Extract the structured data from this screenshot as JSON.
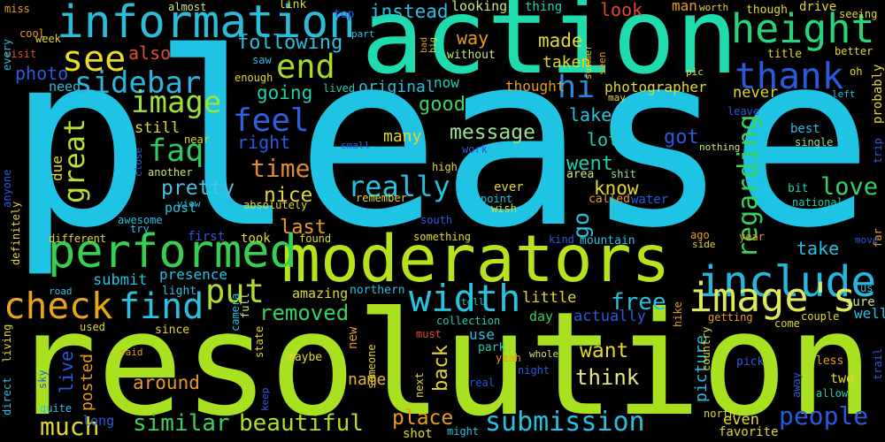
{
  "words": [
    {
      "text": "please",
      "color": "#1fc3e3"
    },
    {
      "text": "resolution",
      "color": "#a9e01f"
    },
    {
      "text": "action",
      "color": "#1fdcae"
    },
    {
      "text": "moderators",
      "color": "#b6e31b"
    },
    {
      "text": "information",
      "color": "#2bbcd8"
    },
    {
      "text": "height",
      "color": "#26d47a"
    },
    {
      "text": "thank",
      "color": "#2a5adb"
    },
    {
      "text": "end",
      "color": "#a4dc28"
    },
    {
      "text": "see",
      "color": "#e6dc22"
    },
    {
      "text": "sidebar",
      "color": "#29b5e0"
    },
    {
      "text": "performed",
      "color": "#35cf52"
    },
    {
      "text": "include",
      "color": "#25b8dc"
    },
    {
      "text": "image's",
      "color": "#dde85a"
    },
    {
      "text": "width",
      "color": "#2ac0e0"
    },
    {
      "text": "find",
      "color": "#28c0e0"
    },
    {
      "text": "check",
      "color": "#e8a51a"
    },
    {
      "text": "put",
      "color": "#b0de28"
    },
    {
      "text": "feel",
      "color": "#3060e0"
    },
    {
      "text": "faq",
      "color": "#2ecc60"
    },
    {
      "text": "hi",
      "color": "#2a8ae0"
    },
    {
      "text": "image",
      "color": "#9ee040"
    },
    {
      "text": "great",
      "color": "#b8e030"
    },
    {
      "text": "really",
      "color": "#28c0e0"
    },
    {
      "text": "love",
      "color": "#3ad060"
    },
    {
      "text": "time",
      "color": "#e08a30"
    },
    {
      "text": "pretty",
      "color": "#4bc0e0"
    },
    {
      "text": "nice",
      "color": "#e0d830"
    },
    {
      "text": "regarding",
      "color": "#3ad060"
    },
    {
      "text": "message",
      "color": "#9ae090"
    },
    {
      "text": "good",
      "color": "#40d060"
    },
    {
      "text": "got",
      "color": "#2a5ae0"
    },
    {
      "text": "went",
      "color": "#1fd0b0"
    },
    {
      "text": "know",
      "color": "#e0d830"
    },
    {
      "text": "lake",
      "color": "#28c0e0"
    },
    {
      "text": "lot",
      "color": "#1fd0b0"
    },
    {
      "text": "free",
      "color": "#28c0e0"
    },
    {
      "text": "removed",
      "color": "#3ad060"
    },
    {
      "text": "similar",
      "color": "#3ad060"
    },
    {
      "text": "beautiful",
      "color": "#b0e020"
    },
    {
      "text": "submission",
      "color": "#28c0e0"
    },
    {
      "text": "people",
      "color": "#2a5ae0"
    },
    {
      "text": "much",
      "color": "#e0d830"
    },
    {
      "text": "place",
      "color": "#e89a20"
    },
    {
      "text": "think",
      "color": "#e6e880"
    },
    {
      "text": "want",
      "color": "#e0d830"
    },
    {
      "text": "around",
      "color": "#e89a20"
    },
    {
      "text": "name",
      "color": "#e8b030"
    },
    {
      "text": "back",
      "color": "#e0d830"
    },
    {
      "text": "take",
      "color": "#28c0e0"
    },
    {
      "text": "go",
      "color": "#28c0e0"
    },
    {
      "text": "last",
      "color": "#e89a20"
    },
    {
      "text": "following",
      "color": "#28c0e0"
    },
    {
      "text": "going",
      "color": "#1fd0b0"
    },
    {
      "text": "instead",
      "color": "#28c0e0"
    },
    {
      "text": "made",
      "color": "#e0d830"
    },
    {
      "text": "taken",
      "color": "#e0d830"
    },
    {
      "text": "way",
      "color": "#e89a20"
    },
    {
      "text": "photographer",
      "color": "#e0d830"
    },
    {
      "text": "look",
      "color": "#e04a30"
    },
    {
      "text": "looking",
      "color": "#c8e880"
    },
    {
      "text": "thing",
      "color": "#1fd0b0"
    },
    {
      "text": "man",
      "color": "#e89a20"
    },
    {
      "text": "original",
      "color": "#28c0e0"
    },
    {
      "text": "thought",
      "color": "#e89a20"
    },
    {
      "text": "now",
      "color": "#1fd0b0"
    },
    {
      "text": "also",
      "color": "#e04a30"
    },
    {
      "text": "photo",
      "color": "#2a5ae0"
    },
    {
      "text": "need",
      "color": "#28c0e0"
    },
    {
      "text": "right",
      "color": "#2a5ae0"
    },
    {
      "text": "still",
      "color": "#e0d830"
    },
    {
      "text": "due",
      "color": "#e0d830"
    },
    {
      "text": "many",
      "color": "#e0d830"
    },
    {
      "text": "post",
      "color": "#28c0e0"
    },
    {
      "text": "absolutely",
      "color": "#e0d830"
    },
    {
      "text": "submit",
      "color": "#28c0e0"
    },
    {
      "text": "presence",
      "color": "#28c0e0"
    },
    {
      "text": "amazing",
      "color": "#e0d830"
    },
    {
      "text": "little",
      "color": "#e0d830"
    },
    {
      "text": "day",
      "color": "#3ad060"
    },
    {
      "text": "actually",
      "color": "#2a5ae0"
    },
    {
      "text": "live",
      "color": "#2a5ae0"
    },
    {
      "text": "posted",
      "color": "#e89a20"
    },
    {
      "text": "use",
      "color": "#28c0e0"
    },
    {
      "text": "collection",
      "color": "#1fd0b0"
    },
    {
      "text": "even",
      "color": "#e0d830"
    },
    {
      "text": "favorite",
      "color": "#e0d830"
    },
    {
      "text": "sure",
      "color": "#c8e880"
    },
    {
      "text": "well",
      "color": "#28c0e0"
    },
    {
      "text": "two",
      "color": "#e0d830"
    },
    {
      "text": "picture",
      "color": "#28c0e0"
    },
    {
      "text": "best",
      "color": "#28c0e0"
    },
    {
      "text": "single",
      "color": "#9ae090"
    },
    {
      "text": "bit",
      "color": "#1fd0b0"
    },
    {
      "text": "national",
      "color": "#1fd0b0"
    },
    {
      "text": "water",
      "color": "#2a5ae0"
    },
    {
      "text": "called",
      "color": "#e89a20"
    },
    {
      "text": "area",
      "color": "#c8e880"
    },
    {
      "text": "shit",
      "color": "#9ae090"
    },
    {
      "text": "mountain",
      "color": "#28c0e0"
    },
    {
      "text": "kind",
      "color": "#2a5ae0"
    },
    {
      "text": "year",
      "color": "#e89a20"
    },
    {
      "text": "ago",
      "color": "#e89a20"
    },
    {
      "text": "something",
      "color": "#e0d830"
    },
    {
      "text": "found",
      "color": "#e0d830"
    },
    {
      "text": "took",
      "color": "#e0d830"
    },
    {
      "text": "first",
      "color": "#2a5ae0"
    },
    {
      "text": "different",
      "color": "#e0d830"
    },
    {
      "text": "remember",
      "color": "#e0d830"
    },
    {
      "text": "ever",
      "color": "#e0d830"
    },
    {
      "text": "point",
      "color": "#28c0e0"
    },
    {
      "text": "wish",
      "color": "#e0d830"
    },
    {
      "text": "south",
      "color": "#2a5ae0"
    },
    {
      "text": "northern",
      "color": "#28c0e0"
    },
    {
      "text": "park",
      "color": "#1fd0b0"
    },
    {
      "text": "must",
      "color": "#e04a30"
    },
    {
      "text": "yeah",
      "color": "#e89a20"
    },
    {
      "text": "whole",
      "color": "#c8e880"
    },
    {
      "text": "night",
      "color": "#2a5ae0"
    },
    {
      "text": "real",
      "color": "#2a5ae0"
    },
    {
      "text": "might",
      "color": "#28c0e0"
    },
    {
      "text": "shot",
      "color": "#e0d830"
    },
    {
      "text": "maybe",
      "color": "#e0d830"
    },
    {
      "text": "light",
      "color": "#28c0e0"
    },
    {
      "text": "used",
      "color": "#e0d830"
    },
    {
      "text": "since",
      "color": "#e0d830"
    },
    {
      "text": "long",
      "color": "#2a5ae0"
    },
    {
      "text": "quite",
      "color": "#28c0e0"
    },
    {
      "text": "said",
      "color": "#e89a20"
    },
    {
      "text": "sky",
      "color": "#2a5ae0"
    },
    {
      "text": "awesome",
      "color": "#28c0e0"
    },
    {
      "text": "try",
      "color": "#28c0e0"
    },
    {
      "text": "view",
      "color": "#28c0e0"
    },
    {
      "text": "another",
      "color": "#c8e880"
    },
    {
      "text": "near",
      "color": "#e0d830"
    },
    {
      "text": "summer",
      "color": "#e0d830"
    },
    {
      "text": "seen",
      "color": "#e89a20"
    },
    {
      "text": "drive",
      "color": "#e0d830"
    },
    {
      "text": "seeing",
      "color": "#e0d830"
    },
    {
      "text": "though",
      "color": "#e0d830"
    },
    {
      "text": "worth",
      "color": "#e0d830"
    },
    {
      "text": "title",
      "color": "#e0d830"
    },
    {
      "text": "better",
      "color": "#e0d830"
    },
    {
      "text": "pic",
      "color": "#e0d830"
    },
    {
      "text": "oh",
      "color": "#e0d830"
    },
    {
      "text": "left",
      "color": "#28c0e0"
    },
    {
      "text": "leave",
      "color": "#2a5ae0"
    },
    {
      "text": "nothing",
      "color": "#c8e880"
    },
    {
      "text": "never",
      "color": "#e0d830"
    },
    {
      "text": "may",
      "color": "#e0d830"
    },
    {
      "text": "miss",
      "color": "#e89a20"
    },
    {
      "text": "almost",
      "color": "#c8e880"
    },
    {
      "text": "link",
      "color": "#e0d830"
    },
    {
      "text": "top",
      "color": "#2a5ae0"
    },
    {
      "text": "part",
      "color": "#28c0e0"
    },
    {
      "text": "without",
      "color": "#c8e880"
    },
    {
      "text": "saw",
      "color": "#28c0e0"
    },
    {
      "text": "enough",
      "color": "#e0d830"
    },
    {
      "text": "lived",
      "color": "#1fd0b0"
    },
    {
      "text": "visit",
      "color": "#e04a30"
    },
    {
      "text": "week",
      "color": "#e0d830"
    },
    {
      "text": "cool",
      "color": "#e89a20"
    },
    {
      "text": "every",
      "color": "#28c0e0"
    },
    {
      "text": "high",
      "color": "#e0d830"
    },
    {
      "text": "work",
      "color": "#2a5ae0"
    },
    {
      "text": "small",
      "color": "#2a5ae0"
    },
    {
      "text": "anyone",
      "color": "#2a5ae0"
    },
    {
      "text": "definitely",
      "color": "#e0d830"
    },
    {
      "text": "direct",
      "color": "#28c0e0"
    },
    {
      "text": "living",
      "color": "#e0d830"
    },
    {
      "text": "state",
      "color": "#e0d830"
    },
    {
      "text": "keep",
      "color": "#2a5ae0"
    },
    {
      "text": "next",
      "color": "#e0d830"
    },
    {
      "text": "someone",
      "color": "#e0d830"
    },
    {
      "text": "new",
      "color": "#e89a20"
    },
    {
      "text": "full",
      "color": "#c8e880"
    },
    {
      "text": "camera",
      "color": "#28c0e0"
    },
    {
      "text": "road",
      "color": "#28c0e0"
    },
    {
      "text": "north",
      "color": "#e0d830"
    },
    {
      "text": "come",
      "color": "#e0d830"
    },
    {
      "text": "getting",
      "color": "#e89a20"
    },
    {
      "text": "couple",
      "color": "#e0d830"
    },
    {
      "text": "pick",
      "color": "#2a5ae0"
    },
    {
      "text": "less",
      "color": "#e89a20"
    },
    {
      "text": "allow",
      "color": "#1fd0b0"
    },
    {
      "text": "away",
      "color": "#2a5ae0"
    },
    {
      "text": "trail",
      "color": "#2a5ae0"
    },
    {
      "text": "country",
      "color": "#e0d830"
    },
    {
      "text": "hike",
      "color": "#e89a20"
    },
    {
      "text": "tell",
      "color": "#1fd0b0"
    },
    {
      "text": "trip",
      "color": "#2a5ae0"
    },
    {
      "text": "probably",
      "color": "#e0d830"
    },
    {
      "text": "far",
      "color": "#e89a20"
    },
    {
      "text": "move",
      "color": "#2a5ae0"
    },
    {
      "text": "side",
      "color": "#e0d830"
    },
    {
      "text": "close",
      "color": "#2a5ae0"
    },
    {
      "text": "bad",
      "color": "#e89a20"
    },
    {
      "text": "big",
      "color": "#e0d830"
    },
    {
      "text": "us",
      "color": "#28c0e0"
    }
  ]
}
